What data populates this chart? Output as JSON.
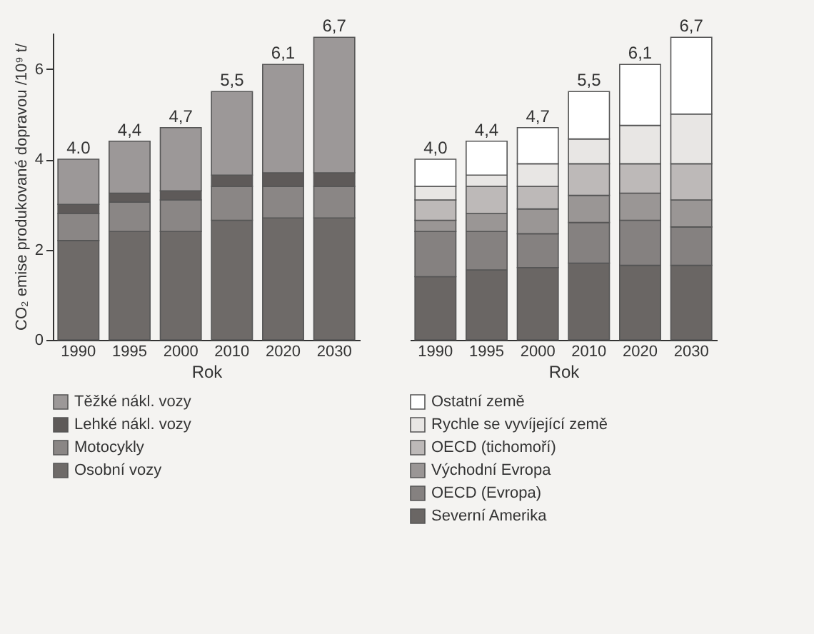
{
  "chart_data": [
    {
      "type": "bar",
      "stacked": true,
      "xlabel": "Rok",
      "ylabel": "CO₂ emise produkované dopravou /10⁹ t/",
      "categories": [
        "1990",
        "1995",
        "2000",
        "2010",
        "2020",
        "2030"
      ],
      "ylim": [
        0,
        6.8
      ],
      "yticks": [
        0,
        2,
        4,
        6
      ],
      "legend": "bottom",
      "totals": [
        "4.0",
        "4,4",
        "4,7",
        "5,5",
        "6,1",
        "6,7"
      ],
      "series": [
        {
          "name": "Osobní vozy",
          "color": "#6e6a68",
          "values": [
            2.2,
            2.4,
            2.4,
            2.65,
            2.7,
            2.7
          ]
        },
        {
          "name": "Motocykly",
          "color": "#8a8685",
          "values": [
            0.6,
            0.65,
            0.7,
            0.75,
            0.7,
            0.7
          ]
        },
        {
          "name": "Lehké nákl. vozy",
          "color": "#5e5a59",
          "values": [
            0.2,
            0.2,
            0.2,
            0.25,
            0.3,
            0.3
          ]
        },
        {
          "name": "Těžké nákl. vozy",
          "color": "#9c9898",
          "values": [
            1.0,
            1.15,
            1.4,
            1.85,
            2.4,
            3.0
          ]
        }
      ]
    },
    {
      "type": "bar",
      "stacked": true,
      "xlabel": "Rok",
      "categories": [
        "1990",
        "1995",
        "2000",
        "2010",
        "2020",
        "2030"
      ],
      "ylim": [
        0,
        6.8
      ],
      "tick_labels": "x",
      "legend": "bottom",
      "totals": [
        "4,0",
        "4,4",
        "4,7",
        "5,5",
        "6,1",
        "6,7"
      ],
      "series": [
        {
          "name": "Severní Amerika",
          "color": "#6a6664",
          "values": [
            1.4,
            1.55,
            1.6,
            1.7,
            1.65,
            1.65
          ]
        },
        {
          "name": "OECD (Evropa)",
          "color": "#858180",
          "values": [
            1.0,
            0.85,
            0.75,
            0.9,
            1.0,
            0.85
          ]
        },
        {
          "name": "Východní Evropa",
          "color": "#9a9695",
          "values": [
            0.25,
            0.4,
            0.55,
            0.6,
            0.6,
            0.6
          ]
        },
        {
          "name": "OECD (tichomoří)",
          "color": "#bdb9b8",
          "values": [
            0.45,
            0.6,
            0.5,
            0.7,
            0.65,
            0.8
          ]
        },
        {
          "name": "Rychle se vyvíjející země",
          "color": "#e8e6e4",
          "values": [
            0.3,
            0.25,
            0.5,
            0.55,
            0.85,
            1.1
          ]
        },
        {
          "name": "Ostatní země",
          "color": "#ffffff",
          "values": [
            0.6,
            0.75,
            0.8,
            1.05,
            1.35,
            1.7
          ]
        }
      ]
    }
  ]
}
